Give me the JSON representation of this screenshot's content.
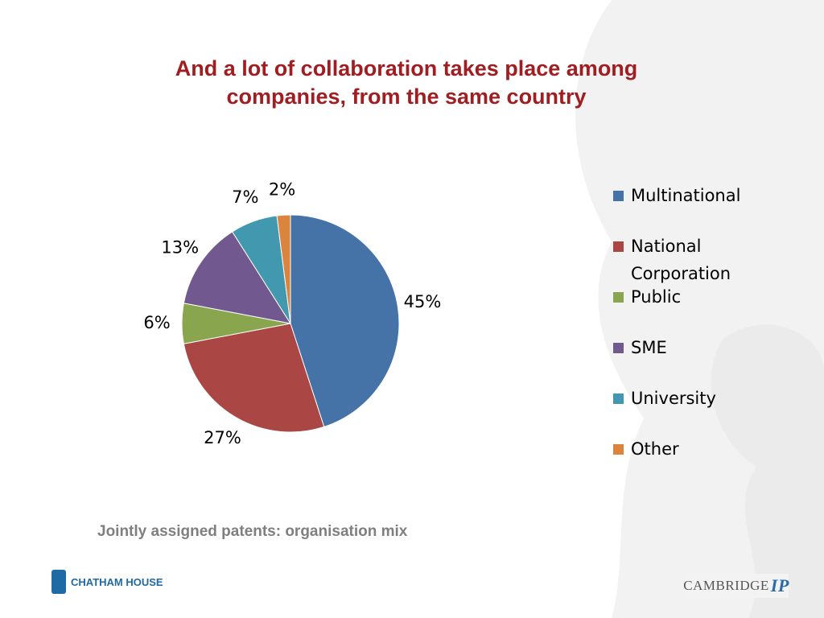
{
  "chart_data": {
    "type": "pie",
    "title": "And a lot of collaboration takes place among companies, from the same country",
    "caption": "Jointly assigned patents: organisation mix",
    "categories": [
      "Multinational",
      "National Corporation",
      "Public",
      "SME",
      "University",
      "Other"
    ],
    "values": [
      45,
      27,
      6,
      13,
      7,
      2
    ],
    "value_labels": [
      "45%",
      "27%",
      "6%",
      "13%",
      "7%",
      "2%"
    ],
    "colors": [
      "#4572a7",
      "#aa4643",
      "#89a54e",
      "#71588f",
      "#4198af",
      "#db843d"
    ],
    "legend": "right"
  },
  "footer": {
    "left_logo": "CHATHAM HOUSE",
    "right_logo": "CAMBRIDGE",
    "right_logo_mark": "IP"
  }
}
